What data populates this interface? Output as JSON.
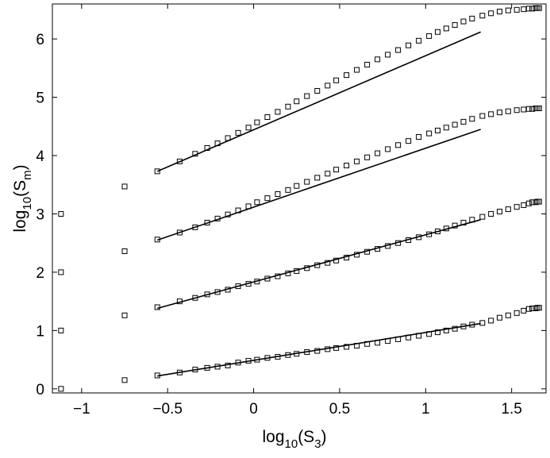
{
  "chart_data": {
    "type": "scatter",
    "title": "",
    "xlabel": {
      "base": "log",
      "sub1": "10",
      "mid": "(S",
      "sub2": "3",
      "end": ")"
    },
    "ylabel": {
      "base": "log",
      "sub1": "10",
      "mid": "(S",
      "sub2": "m",
      "end": ")"
    },
    "xlim": [
      -1.17,
      1.7
    ],
    "ylim": [
      -0.07,
      6.6
    ],
    "xticks": [
      -1,
      -0.5,
      0,
      0.5,
      1,
      1.5
    ],
    "xtick_labels": [
      "−1",
      "−0.5",
      "0",
      "0.5",
      "1",
      "1.5"
    ],
    "yticks": [
      0,
      1,
      2,
      3,
      4,
      5,
      6
    ],
    "ytick_labels": [
      "0",
      "1",
      "2",
      "3",
      "4",
      "5",
      "6"
    ],
    "grid": false,
    "marker": "open-square",
    "series": [
      {
        "x": [
          -1.12,
          -0.75,
          -0.56,
          -0.43,
          -0.34,
          -0.27,
          -0.21,
          -0.15,
          -0.09,
          -0.03,
          0.02,
          0.08,
          0.14,
          0.2,
          0.25,
          0.31,
          0.37,
          0.43,
          0.48,
          0.54,
          0.6,
          0.66,
          0.72,
          0.78,
          0.84,
          0.9,
          0.96,
          1.02,
          1.07,
          1.12,
          1.17,
          1.22,
          1.27,
          1.33,
          1.38,
          1.43,
          1.48,
          1.53,
          1.57,
          1.6,
          1.62,
          1.64,
          1.65,
          1.66
        ],
        "y": [
          0.0,
          0.15,
          0.23,
          0.28,
          0.33,
          0.36,
          0.38,
          0.4,
          0.45,
          0.48,
          0.5,
          0.53,
          0.55,
          0.58,
          0.6,
          0.63,
          0.65,
          0.68,
          0.7,
          0.72,
          0.74,
          0.77,
          0.79,
          0.82,
          0.85,
          0.88,
          0.91,
          0.94,
          0.97,
          1.0,
          1.03,
          1.07,
          1.1,
          1.13,
          1.17,
          1.22,
          1.26,
          1.3,
          1.34,
          1.37,
          1.38,
          1.38,
          1.39,
          1.39
        ],
        "fit": {
          "x": [
            -0.56,
            1.32
          ],
          "y": [
            0.22,
            1.12
          ]
        }
      },
      {
        "x": [
          -1.12,
          -0.75,
          -0.56,
          -0.43,
          -0.34,
          -0.27,
          -0.21,
          -0.15,
          -0.09,
          -0.03,
          0.02,
          0.08,
          0.14,
          0.2,
          0.25,
          0.31,
          0.37,
          0.43,
          0.48,
          0.54,
          0.6,
          0.66,
          0.72,
          0.78,
          0.84,
          0.9,
          0.96,
          1.02,
          1.07,
          1.12,
          1.17,
          1.22,
          1.27,
          1.33,
          1.38,
          1.43,
          1.48,
          1.53,
          1.57,
          1.6,
          1.62,
          1.64,
          1.65,
          1.66
        ],
        "y": [
          1.0,
          1.26,
          1.4,
          1.5,
          1.56,
          1.62,
          1.66,
          1.7,
          1.76,
          1.8,
          1.84,
          1.89,
          1.93,
          1.98,
          2.02,
          2.07,
          2.12,
          2.16,
          2.2,
          2.25,
          2.3,
          2.35,
          2.4,
          2.45,
          2.5,
          2.55,
          2.6,
          2.65,
          2.7,
          2.75,
          2.8,
          2.85,
          2.9,
          2.95,
          3.0,
          3.04,
          3.08,
          3.12,
          3.15,
          3.18,
          3.2,
          3.2,
          3.21,
          3.21
        ],
        "fit": {
          "x": [
            -0.56,
            1.32
          ],
          "y": [
            1.38,
            2.9
          ]
        }
      },
      {
        "x": [
          -1.12,
          -0.75,
          -0.56,
          -0.43,
          -0.34,
          -0.27,
          -0.21,
          -0.15,
          -0.09,
          -0.03,
          0.02,
          0.08,
          0.14,
          0.2,
          0.25,
          0.31,
          0.37,
          0.43,
          0.48,
          0.54,
          0.6,
          0.66,
          0.72,
          0.78,
          0.84,
          0.9,
          0.96,
          1.02,
          1.07,
          1.12,
          1.17,
          1.22,
          1.27,
          1.33,
          1.38,
          1.43,
          1.48,
          1.53,
          1.57,
          1.6,
          1.62,
          1.64,
          1.65,
          1.66
        ],
        "y": [
          2.0,
          2.36,
          2.56,
          2.68,
          2.77,
          2.85,
          2.92,
          2.99,
          3.06,
          3.13,
          3.2,
          3.27,
          3.34,
          3.41,
          3.48,
          3.55,
          3.62,
          3.69,
          3.76,
          3.83,
          3.9,
          3.97,
          4.04,
          4.11,
          4.18,
          4.25,
          4.32,
          4.38,
          4.43,
          4.48,
          4.53,
          4.58,
          4.63,
          4.68,
          4.71,
          4.74,
          4.76,
          4.78,
          4.79,
          4.8,
          4.8,
          4.81,
          4.81,
          4.81
        ],
        "fit": {
          "x": [
            -0.56,
            1.32
          ],
          "y": [
            2.55,
            4.45
          ]
        }
      },
      {
        "x": [
          -1.12,
          -0.75,
          -0.56,
          -0.43,
          -0.34,
          -0.27,
          -0.21,
          -0.15,
          -0.09,
          -0.03,
          0.02,
          0.08,
          0.14,
          0.2,
          0.25,
          0.31,
          0.37,
          0.43,
          0.48,
          0.54,
          0.6,
          0.66,
          0.72,
          0.78,
          0.84,
          0.9,
          0.96,
          1.02,
          1.07,
          1.12,
          1.17,
          1.22,
          1.27,
          1.33,
          1.38,
          1.43,
          1.48,
          1.53,
          1.57,
          1.6,
          1.62,
          1.64,
          1.65,
          1.66
        ],
        "y": [
          3.0,
          3.47,
          3.73,
          3.9,
          4.03,
          4.13,
          4.21,
          4.3,
          4.39,
          4.48,
          4.57,
          4.66,
          4.75,
          4.84,
          4.93,
          5.02,
          5.11,
          5.2,
          5.29,
          5.38,
          5.47,
          5.56,
          5.65,
          5.73,
          5.81,
          5.89,
          5.97,
          6.05,
          6.12,
          6.18,
          6.24,
          6.3,
          6.35,
          6.4,
          6.44,
          6.47,
          6.49,
          6.5,
          6.51,
          6.52,
          6.52,
          6.53,
          6.53,
          6.53
        ],
        "fit": {
          "x": [
            -0.56,
            1.32
          ],
          "y": [
            3.73,
            6.12
          ]
        }
      }
    ]
  }
}
